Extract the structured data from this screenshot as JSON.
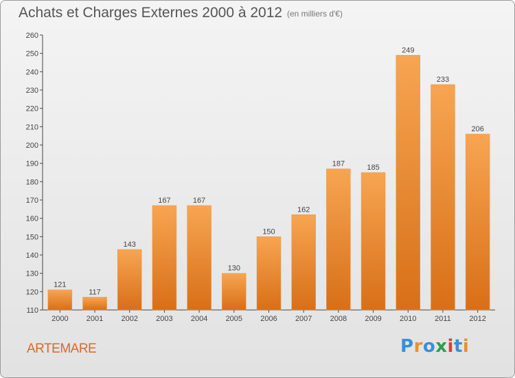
{
  "header": {
    "title": "Achats et Charges Externes 2000 à 2012",
    "subtitle": "(en milliers d'€)"
  },
  "footer": {
    "place": "ARTEMARE",
    "brand": [
      "P",
      "r",
      "o",
      "x",
      "i",
      "t",
      "i"
    ],
    "brand_colors": [
      "#3a8fd6",
      "#e8922a",
      "#3a8fd6",
      "#2aa04a",
      "#e23a3a",
      "#3a8fd6",
      "#e8922a"
    ]
  },
  "chart_data": {
    "type": "bar",
    "title": "Achats et Charges Externes 2000 à 2012",
    "subtitle": "(en milliers d'€)",
    "categories": [
      "2000",
      "2001",
      "2002",
      "2003",
      "2004",
      "2005",
      "2006",
      "2007",
      "2008",
      "2009",
      "2010",
      "2011",
      "2012"
    ],
    "values": [
      121,
      117,
      143,
      167,
      167,
      130,
      150,
      162,
      187,
      185,
      249,
      233,
      206
    ],
    "ylim": [
      110,
      260
    ],
    "yticks": [
      110,
      120,
      130,
      140,
      150,
      160,
      170,
      180,
      190,
      200,
      210,
      220,
      230,
      240,
      250,
      260
    ],
    "grid": false,
    "bar_color_top": "#f7a552",
    "bar_color_bottom": "#d86f18",
    "data_labels": true
  }
}
